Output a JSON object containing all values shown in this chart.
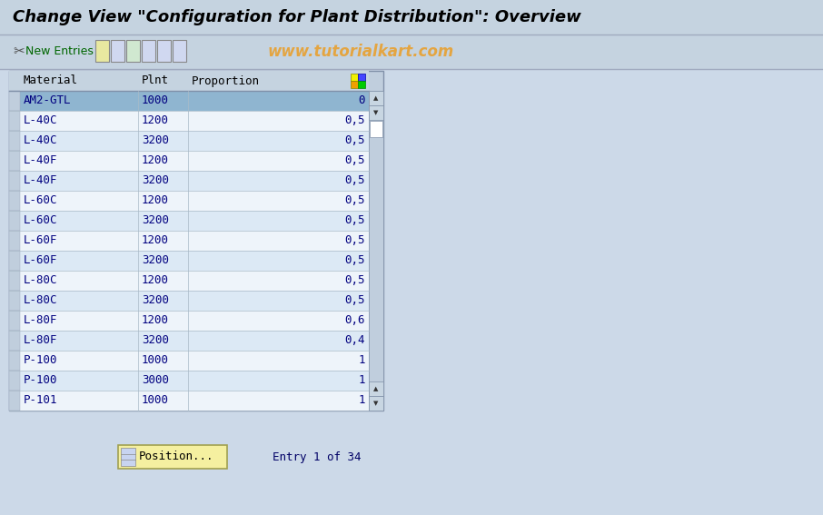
{
  "title": "Change View \"Configuration for Plant Distribution\": Overview",
  "toolbar_text": "New Entries",
  "watermark": "www.tutorialkart.com",
  "col_headers": [
    "Material",
    "Plnt",
    "Proportion"
  ],
  "rows": [
    [
      "AM2-GTL",
      "1000",
      "0"
    ],
    [
      "L-40C",
      "1200",
      "0,5"
    ],
    [
      "L-40C",
      "3200",
      "0,5"
    ],
    [
      "L-40F",
      "1200",
      "0,5"
    ],
    [
      "L-40F",
      "3200",
      "0,5"
    ],
    [
      "L-60C",
      "1200",
      "0,5"
    ],
    [
      "L-60C",
      "3200",
      "0,5"
    ],
    [
      "L-60F",
      "1200",
      "0,5"
    ],
    [
      "L-60F",
      "3200",
      "0,5"
    ],
    [
      "L-80C",
      "1200",
      "0,5"
    ],
    [
      "L-80C",
      "3200",
      "0,5"
    ],
    [
      "L-80F",
      "1200",
      "0,6"
    ],
    [
      "L-80F",
      "3200",
      "0,4"
    ],
    [
      "P-100",
      "1000",
      "1"
    ],
    [
      "P-100",
      "3000",
      "1"
    ],
    [
      "P-101",
      "1000",
      "1"
    ]
  ],
  "selected_row": 0,
  "bg_color": "#ccd9e8",
  "title_bg": "#c5d3e0",
  "toolbar_bg": "#c5d3e0",
  "table_outer_bg": "#c0cedd",
  "table_bg_odd": "#dce9f5",
  "table_bg_even": "#eef4fa",
  "table_selected_bg": "#8fb5d0",
  "header_bg": "#c5d3e0",
  "scrollbar_bg": "#c0cedd",
  "arrow_btn_bg": "#c8d6e2",
  "cell_text_color": "#000080",
  "header_text_color": "#000000",
  "title_text_color": "#000000",
  "watermark_color": "#e8a030",
  "position_btn_text": "Position...",
  "entry_text": "Entry 1 of 34",
  "title_fontsize": 13,
  "cell_fontsize": 9,
  "header_fontsize": 9,
  "toolbar_fontsize": 9,
  "watermark_fontsize": 12
}
